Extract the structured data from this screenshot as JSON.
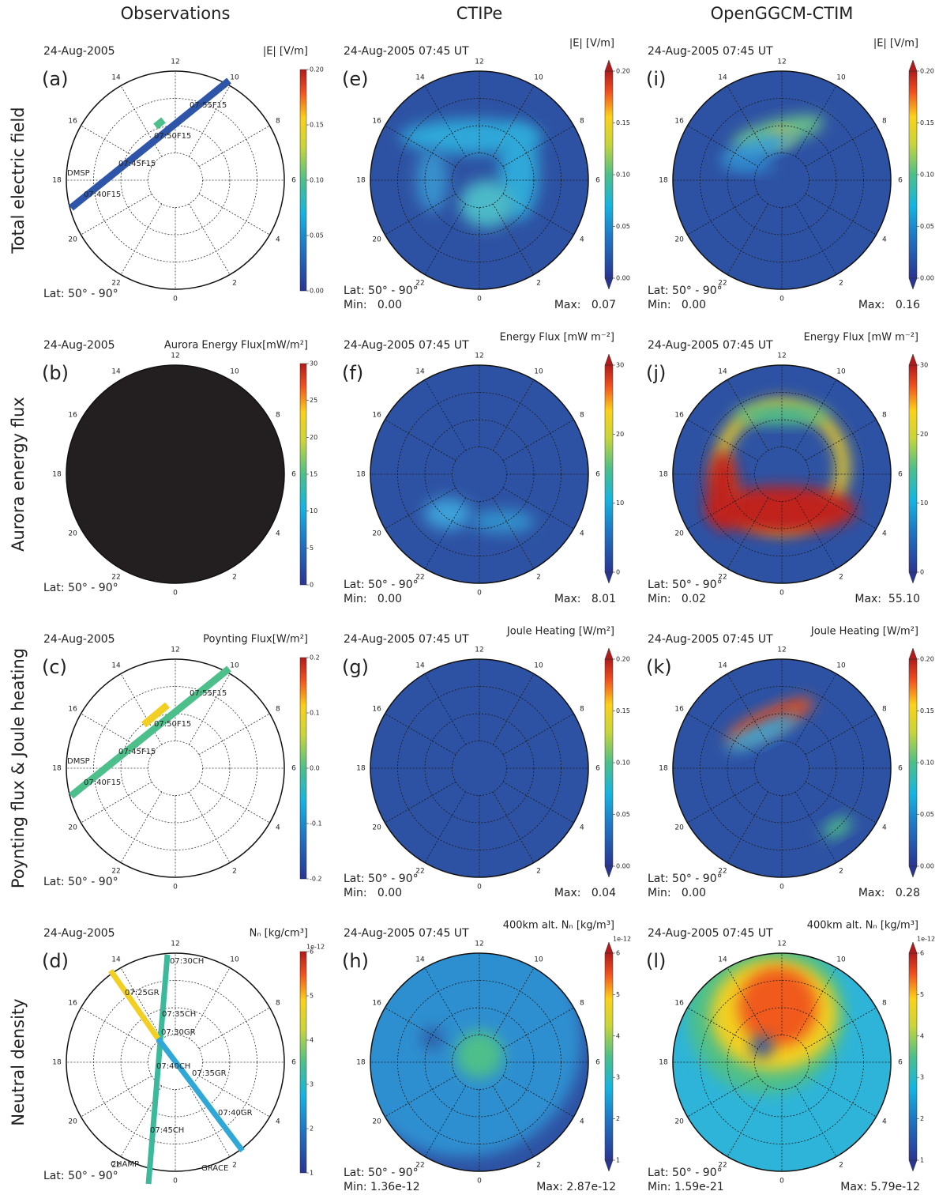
{
  "columns": [
    "Observations",
    "CTIPe",
    "OpenGGCM-CTIM"
  ],
  "rows": [
    "Total electric field",
    "Aurora energy flux",
    "Poynting flux & Joule heating",
    "Neutral density"
  ],
  "hour_labels": [
    "12",
    "14",
    "16",
    "18",
    "20",
    "22",
    "0",
    "2",
    "4",
    "6",
    "8",
    "10"
  ],
  "panels": [
    [
      {
        "letter": "(a)",
        "date": "24-Aug-2005",
        "quantity": "|E| [V/m]",
        "lat": "Lat: 50° - 90°",
        "colorbar": [
          "0.00",
          "0.05",
          "0.10",
          "0.15",
          "0.20"
        ],
        "track_labels": [
          "07:55F15",
          "07:50F15",
          "07:45F15",
          "07:40F15",
          "DMSP"
        ]
      },
      {
        "letter": "(e)",
        "date": "24-Aug-2005 07:45 UT",
        "quantity": "|E| [V/m]",
        "lat": "Lat: 50° - 90°",
        "min": "Min:   0.00",
        "max": "Max:   0.07",
        "colorbar": [
          "0.00",
          "0.05",
          "0.10",
          "0.15",
          "0.20"
        ]
      },
      {
        "letter": "(i)",
        "date": "24-Aug-2005 07:45 UT",
        "quantity": "|E| [V/m]",
        "lat": "Lat: 50° - 90°",
        "min": "Min:   0.00",
        "max": "Max:   0.16",
        "colorbar": [
          "0.00",
          "0.05",
          "0.10",
          "0.15",
          "0.20"
        ]
      }
    ],
    [
      {
        "letter": "(b)",
        "date": "24-Aug-2005",
        "quantity": "Aurora Energy Flux[mW/m²]",
        "lat": "Lat: 50° - 90°",
        "colorbar": [
          "0",
          "5",
          "10",
          "15",
          "20",
          "25",
          "30"
        ]
      },
      {
        "letter": "(f)",
        "date": "24-Aug-2005 07:45 UT",
        "quantity": "Energy Flux [mW m⁻²]",
        "lat": "Lat: 50° - 90°",
        "min": "Min:   0.00",
        "max": "Max:   8.01",
        "colorbar": [
          "0",
          "10",
          "20",
          "30"
        ]
      },
      {
        "letter": "(j)",
        "date": "24-Aug-2005 07:45 UT",
        "quantity": "Energy Flux [mW m⁻²]",
        "lat": "Lat: 50° - 90°",
        "min": "Min:   0.02",
        "max": "Max:  55.10",
        "colorbar": [
          "0",
          "10",
          "20",
          "30"
        ]
      }
    ],
    [
      {
        "letter": "(c)",
        "date": "24-Aug-2005",
        "quantity": "Poynting Flux[W/m²]",
        "lat": "Lat: 50° - 90°",
        "colorbar": [
          "-0.2",
          "-0.1",
          "0.0",
          "0.1",
          "0.2"
        ],
        "track_labels": [
          "07:55F15",
          "07:50F15",
          "07:45F15",
          "07:40F15",
          "DMSP"
        ]
      },
      {
        "letter": "(g)",
        "date": "24-Aug-2005 07:45 UT",
        "quantity": "Joule Heating [W/m²]",
        "lat": "Lat: 50° - 90°",
        "min": "Min:   0.00",
        "max": "Max:   0.04",
        "colorbar": [
          "0.00",
          "0.05",
          "0.10",
          "0.15",
          "0.20"
        ]
      },
      {
        "letter": "(k)",
        "date": "24-Aug-2005 07:45 UT",
        "quantity": "Joule Heating [W/m²]",
        "lat": "Lat: 50° - 90°",
        "min": "Min:   0.00",
        "max": "Max:   0.28",
        "colorbar": [
          "0.00",
          "0.05",
          "0.10",
          "0.15",
          "0.20"
        ]
      }
    ],
    [
      {
        "letter": "(d)",
        "date": "24-Aug-2005",
        "quantity": "Nₙ [kg/cm³]",
        "lat": "Lat: 50° - 90°",
        "colorbar": [
          "1",
          "2",
          "3",
          "4",
          "5",
          "6"
        ],
        "exponent": "1e-12",
        "track_labels": [
          "07:30CH",
          "07:25GR",
          "07:35CH",
          "07:30GR",
          "07:40CH",
          "07:35GR",
          "07:45CH",
          "07:40GR",
          "CHAMP",
          "GRACE"
        ]
      },
      {
        "letter": "(h)",
        "date": "24-Aug-2005 07:45 UT",
        "quantity": "400km alt. Nₙ [kg/m³]",
        "lat": "Lat: 50° - 90°",
        "min": "Min: 1.36e-12",
        "max": "Max: 2.87e-12",
        "colorbar": [
          "1",
          "2",
          "3",
          "4",
          "5",
          "6"
        ],
        "exponent": "1e-12"
      },
      {
        "letter": "(l)",
        "date": "24-Aug-2005 07:45 UT",
        "quantity": "400km alt. Nₙ [kg/m³]",
        "lat": "Lat: 50° - 90°",
        "min": "Min: 1.59e-21",
        "max": "Max: 5.79e-12",
        "colorbar": [
          "1",
          "2",
          "3",
          "4",
          "5",
          "6"
        ],
        "exponent": "1e-12"
      }
    ]
  ]
}
